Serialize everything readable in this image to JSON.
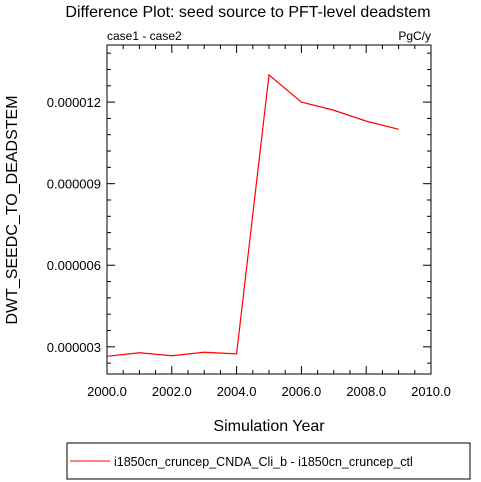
{
  "chart_data": {
    "type": "line",
    "title": "Difference Plot: seed source to PFT-level deadstem",
    "left_subtitle": "case1 - case2",
    "right_subtitle": "PgC/y",
    "xlabel": "Simulation Year",
    "ylabel": "DWT_SEEDC_TO_DEADSTEM",
    "xlim": [
      2000,
      2010
    ],
    "ylim": [
      2e-06,
      1.41e-05
    ],
    "x_ticks": [
      {
        "value": 2000,
        "label": "2000.0"
      },
      {
        "value": 2002,
        "label": "2002.0"
      },
      {
        "value": 2004,
        "label": "2004.0"
      },
      {
        "value": 2006,
        "label": "2006.0"
      },
      {
        "value": 2008,
        "label": "2008.0"
      },
      {
        "value": 2010,
        "label": "2010.0"
      }
    ],
    "y_ticks": [
      {
        "value": 3e-06,
        "label": "0.000003"
      },
      {
        "value": 6e-06,
        "label": "0.000006"
      },
      {
        "value": 9e-06,
        "label": "0.000009"
      },
      {
        "value": 1.2e-05,
        "label": "0.000012"
      }
    ],
    "grid": false,
    "legend_position": "bottom",
    "series": [
      {
        "name": "i1850cn_cruncep_CNDA_Cli_b - i1850cn_cruncep_ctl",
        "color": "#ff0000",
        "x": [
          2000,
          2001,
          2002,
          2003,
          2004,
          2005,
          2006,
          2007,
          2008,
          2009
        ],
        "values": [
          2.65e-06,
          2.78e-06,
          2.67e-06,
          2.8e-06,
          2.74e-06,
          1.3e-05,
          1.2e-05,
          1.17e-05,
          1.13e-05,
          1.1e-05
        ]
      }
    ]
  }
}
